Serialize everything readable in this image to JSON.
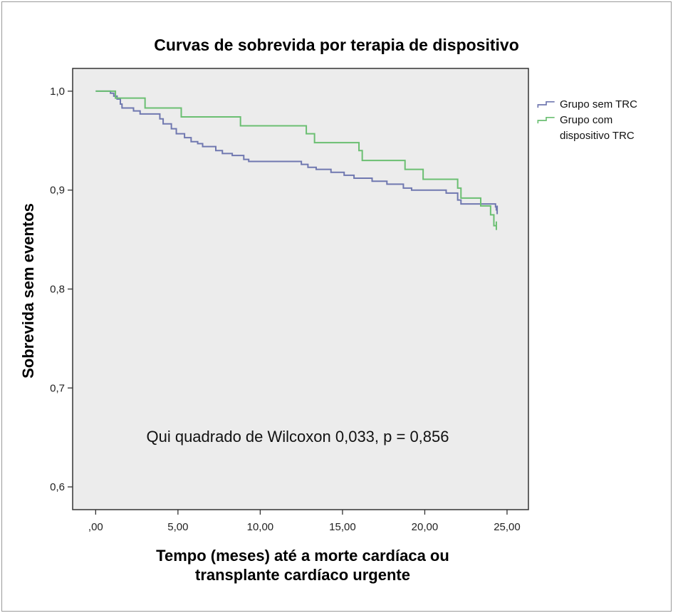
{
  "chart_data": {
    "type": "line",
    "subtype": "kaplan-meier-step",
    "title": "Curvas de sobrevida por terapia de dispositivo",
    "xlabel_lines": [
      "Tempo (meses) até a morte cardíaca ou",
      "transplante cardíaco urgente"
    ],
    "ylabel": "Sobrevida sem eventos",
    "xlim": [
      -1.4,
      26.3
    ],
    "ylim": [
      0.577,
      1.023
    ],
    "x_ticks": [
      0,
      5,
      10,
      15,
      20,
      25
    ],
    "x_tick_labels": [
      ",00",
      "5,00",
      "10,00",
      "15,00",
      "20,00",
      "25,00"
    ],
    "y_ticks": [
      0.6,
      0.7,
      0.8,
      0.9,
      1.0
    ],
    "y_tick_labels": [
      "0,6",
      "0,7",
      "0,8",
      "0,9",
      "1,0"
    ],
    "annotation": "Qui quadrado de Wilcoxon 0,033, p = 0,856",
    "legend_position": "right",
    "background": "#ececec",
    "series": [
      {
        "name": "Grupo sem TRC",
        "color": "#7078b0",
        "steps": [
          [
            0,
            1.0
          ],
          [
            0.9,
            0.998
          ],
          [
            1.1,
            0.995
          ],
          [
            1.3,
            0.992
          ],
          [
            1.5,
            0.987
          ],
          [
            1.6,
            0.983
          ],
          [
            2.3,
            0.98
          ],
          [
            2.7,
            0.977
          ],
          [
            3.9,
            0.972
          ],
          [
            4.1,
            0.967
          ],
          [
            4.6,
            0.962
          ],
          [
            4.9,
            0.957
          ],
          [
            5.4,
            0.953
          ],
          [
            5.8,
            0.949
          ],
          [
            6.2,
            0.947
          ],
          [
            6.5,
            0.944
          ],
          [
            7.3,
            0.94
          ],
          [
            7.7,
            0.937
          ],
          [
            8.3,
            0.935
          ],
          [
            9.0,
            0.931
          ],
          [
            9.3,
            0.929
          ],
          [
            12.5,
            0.926
          ],
          [
            12.9,
            0.923
          ],
          [
            13.4,
            0.921
          ],
          [
            14.3,
            0.918
          ],
          [
            15.1,
            0.915
          ],
          [
            15.7,
            0.912
          ],
          [
            16.8,
            0.909
          ],
          [
            17.7,
            0.906
          ],
          [
            18.7,
            0.902
          ],
          [
            19.2,
            0.9
          ],
          [
            21.3,
            0.897
          ],
          [
            22.0,
            0.89
          ],
          [
            22.2,
            0.886
          ],
          [
            24.3,
            0.883
          ],
          [
            24.35,
            0.88
          ]
        ],
        "end_x": 24.4
      },
      {
        "name": "Grupo com dispositivo TRC",
        "color": "#6bbf72",
        "steps": [
          [
            0,
            1.0
          ],
          [
            1.2,
            0.993
          ],
          [
            3.0,
            0.983
          ],
          [
            5.2,
            0.974
          ],
          [
            8.8,
            0.965
          ],
          [
            12.8,
            0.957
          ],
          [
            13.3,
            0.948
          ],
          [
            16.0,
            0.94
          ],
          [
            16.2,
            0.93
          ],
          [
            18.8,
            0.921
          ],
          [
            19.9,
            0.911
          ],
          [
            22.0,
            0.902
          ],
          [
            22.2,
            0.892
          ],
          [
            23.4,
            0.884
          ],
          [
            24.0,
            0.875
          ],
          [
            24.2,
            0.864
          ]
        ],
        "end_x": 24.35
      }
    ]
  }
}
